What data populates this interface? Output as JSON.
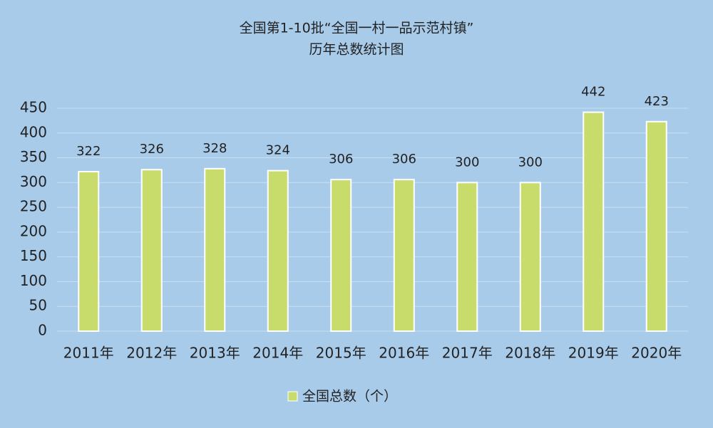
{
  "chart_data": {
    "type": "bar",
    "title": "全国第1-10批“全国一村一品示范村镇”",
    "subtitle": "历年总数统计图",
    "categories": [
      "2011年",
      "2012年",
      "2013年",
      "2014年",
      "2015年",
      "2016年",
      "2017年",
      "2018年",
      "2019年",
      "2020年"
    ],
    "series": [
      {
        "name": "全国总数（个）",
        "color": "#c8dc6c",
        "values": [
          322,
          326,
          328,
          324,
          306,
          306,
          300,
          300,
          442,
          423
        ]
      }
    ],
    "ylim": [
      0,
      450
    ],
    "yticks": [
      0,
      50,
      100,
      150,
      200,
      250,
      300,
      350,
      400,
      450
    ],
    "grid": true,
    "legend": "bottom"
  }
}
